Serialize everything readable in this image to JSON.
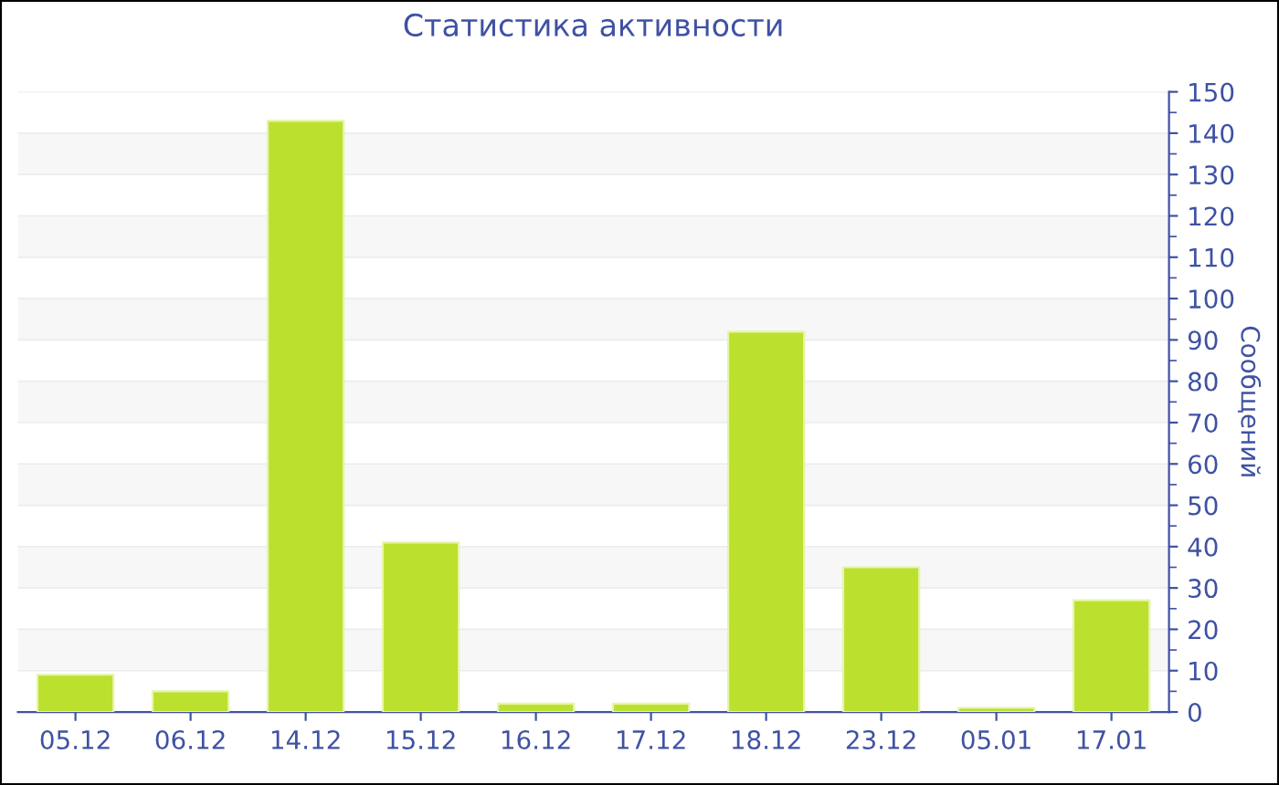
{
  "chart_data": {
    "type": "bar",
    "title": "Статистика активности",
    "ylabel": "Сообщений",
    "categories": [
      "05.12",
      "06.12",
      "14.12",
      "15.12",
      "16.12",
      "17.12",
      "18.12",
      "23.12",
      "05.01",
      "17.01"
    ],
    "values": [
      9,
      5,
      143,
      41,
      2,
      2,
      92,
      35,
      1,
      27
    ],
    "color": "#bce02e",
    "ylim": [
      0,
      150
    ],
    "yticks": [
      0,
      10,
      20,
      30,
      40,
      50,
      60,
      70,
      80,
      90,
      100,
      110,
      120,
      130,
      140,
      150
    ],
    "grid": "y"
  }
}
